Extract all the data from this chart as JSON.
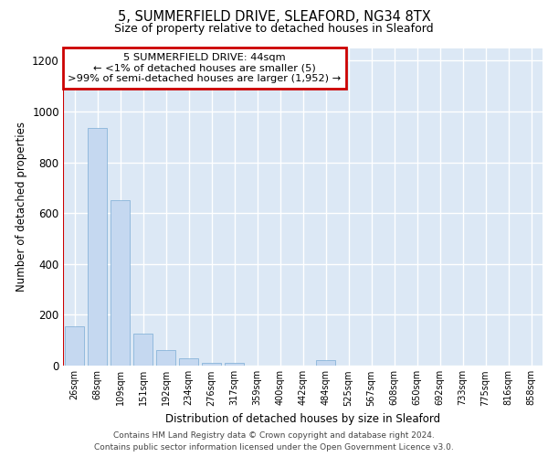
{
  "title_line1": "5, SUMMERFIELD DRIVE, SLEAFORD, NG34 8TX",
  "title_line2": "Size of property relative to detached houses in Sleaford",
  "xlabel": "Distribution of detached houses by size in Sleaford",
  "ylabel": "Number of detached properties",
  "categories": [
    "26sqm",
    "68sqm",
    "109sqm",
    "151sqm",
    "192sqm",
    "234sqm",
    "276sqm",
    "317sqm",
    "359sqm",
    "400sqm",
    "442sqm",
    "484sqm",
    "525sqm",
    "567sqm",
    "608sqm",
    "650sqm",
    "692sqm",
    "733sqm",
    "775sqm",
    "816sqm",
    "858sqm"
  ],
  "values": [
    155,
    935,
    650,
    125,
    62,
    28,
    12,
    12,
    0,
    0,
    0,
    20,
    0,
    0,
    0,
    0,
    0,
    0,
    0,
    0,
    0
  ],
  "bar_color": "#c5d8f0",
  "bar_edge_color": "#7aacd4",
  "annotation_text_line1": "5 SUMMERFIELD DRIVE: 44sqm",
  "annotation_text_line2": "← <1% of detached houses are smaller (5)",
  "annotation_text_line3": ">99% of semi-detached houses are larger (1,952) →",
  "annotation_box_facecolor": "#ffffff",
  "annotation_box_edgecolor": "#cc0000",
  "red_line_color": "#cc0000",
  "ylim": [
    0,
    1250
  ],
  "yticks": [
    0,
    200,
    400,
    600,
    800,
    1000,
    1200
  ],
  "figure_background": "#ffffff",
  "plot_background": "#dce8f5",
  "grid_color": "#ffffff",
  "footer_line1": "Contains HM Land Registry data © Crown copyright and database right 2024.",
  "footer_line2": "Contains public sector information licensed under the Open Government Licence v3.0."
}
